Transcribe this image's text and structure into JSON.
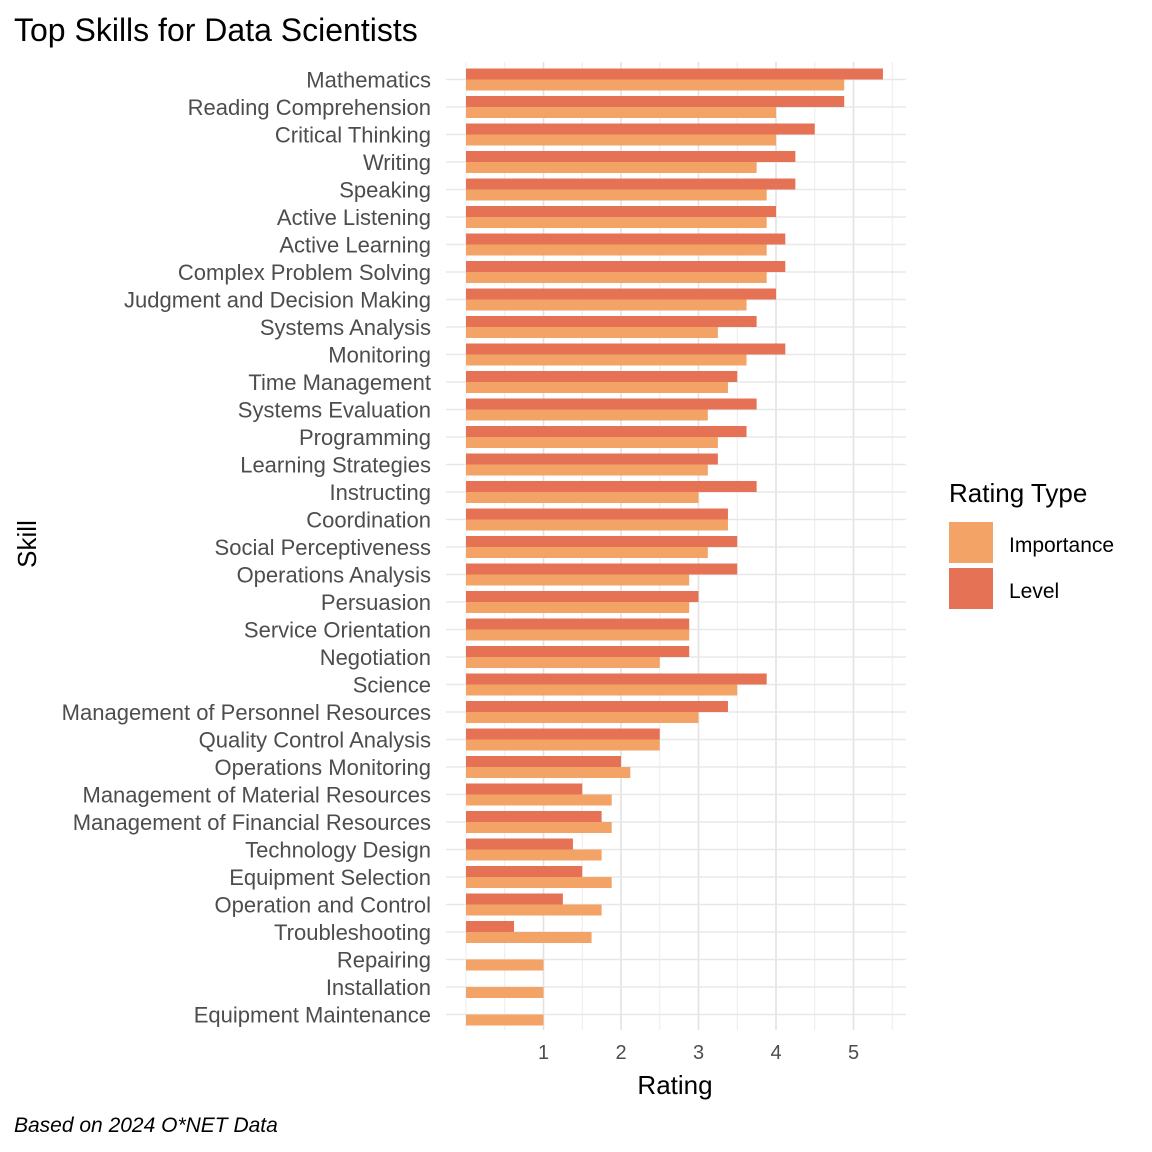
{
  "chart_data": {
    "type": "bar",
    "orientation": "horizontal",
    "title": "Top Skills for Data Scientists",
    "xlabel": "Rating",
    "ylabel": "Skill",
    "caption": "Based on 2024 O*NET Data",
    "xlim": [
      0,
      5.6
    ],
    "xticks": [
      1,
      2,
      3,
      4,
      5
    ],
    "grid": true,
    "legend": {
      "title": "Rating Type",
      "position": "right"
    },
    "categories": [
      "Mathematics",
      "Reading Comprehension",
      "Critical Thinking",
      "Writing",
      "Speaking",
      "Active Listening",
      "Active Learning",
      "Complex Problem Solving",
      "Judgment and Decision Making",
      "Systems Analysis",
      "Monitoring",
      "Time Management",
      "Systems Evaluation",
      "Programming",
      "Learning Strategies",
      "Instructing",
      "Coordination",
      "Social Perceptiveness",
      "Operations Analysis",
      "Persuasion",
      "Service Orientation",
      "Negotiation",
      "Science",
      "Management of Personnel Resources",
      "Quality Control Analysis",
      "Operations Monitoring",
      "Management of Material Resources",
      "Management of Financial Resources",
      "Technology Design",
      "Equipment Selection",
      "Operation and Control",
      "Troubleshooting",
      "Repairing",
      "Installation",
      "Equipment Maintenance"
    ],
    "series": [
      {
        "name": "Importance",
        "color": "#F2A365",
        "values": [
          4.88,
          4.0,
          4.0,
          3.75,
          3.88,
          3.88,
          3.88,
          3.88,
          3.62,
          3.25,
          3.62,
          3.38,
          3.12,
          3.25,
          3.12,
          3.0,
          3.38,
          3.12,
          2.88,
          2.88,
          2.88,
          2.5,
          3.5,
          3.0,
          2.5,
          2.12,
          1.88,
          1.88,
          1.75,
          1.88,
          1.75,
          1.62,
          1.0,
          1.0,
          1.0
        ]
      },
      {
        "name": "Level",
        "color": "#E57254",
        "values": [
          5.38,
          4.88,
          4.5,
          4.25,
          4.25,
          4.0,
          4.12,
          4.12,
          4.0,
          3.75,
          4.12,
          3.5,
          3.75,
          3.62,
          3.25,
          3.75,
          3.38,
          3.5,
          3.5,
          3.0,
          2.88,
          2.88,
          3.88,
          3.38,
          2.5,
          2.0,
          1.5,
          1.75,
          1.38,
          1.5,
          1.25,
          0.62,
          0,
          0,
          0
        ]
      }
    ]
  }
}
